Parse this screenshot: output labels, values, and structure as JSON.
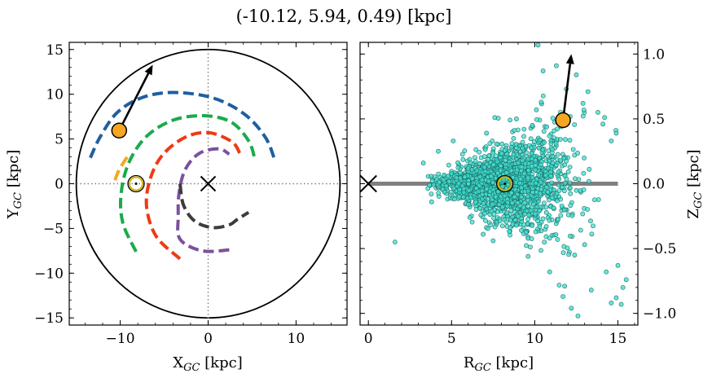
{
  "figure": {
    "title": "(-10.12, 5.94, 0.49) [kpc]"
  },
  "chart_data": [
    {
      "type": "scatter",
      "panel": "left",
      "xlabel_main": "X",
      "xlabel_sub": "GC",
      "xlabel_unit": " [kpc]",
      "ylabel_main": "Y",
      "ylabel_sub": "GC",
      "ylabel_unit": " [kpc]",
      "xlim": [
        -15.8,
        15.8
      ],
      "ylim": [
        -15.8,
        15.8
      ],
      "xticks": [
        -10,
        0,
        10
      ],
      "yticks": [
        15,
        10,
        5,
        0,
        -5,
        -10,
        -15
      ],
      "xtick_labels": [
        "−10",
        "0",
        "10"
      ],
      "ytick_labels": [
        "15",
        "10",
        "5",
        "0",
        "−5",
        "−10",
        "−15"
      ],
      "grid": false,
      "boundary_circle_radius": 15,
      "reference_lines": {
        "x": 0,
        "y": 0,
        "style": "dotted"
      },
      "galactic_center": {
        "x": 0,
        "y": 0,
        "marker": "x"
      },
      "sun": {
        "x": -8.2,
        "y": 0,
        "marker": "sun-symbol",
        "color": "#d4b200"
      },
      "target": {
        "x": -10.12,
        "y": 5.94,
        "color": "#f5a623"
      },
      "velocity_arrow": {
        "from": [
          -10.12,
          5.94
        ],
        "to": [
          -6.3,
          13.3
        ]
      },
      "spiral_arms": [
        {
          "color": "#1f5fa0",
          "points": [
            [
              -13.4,
              2.9
            ],
            [
              -12.3,
              5.2
            ],
            [
              -10.4,
              7.9
            ],
            [
              -7.6,
              9.6
            ],
            [
              -4.0,
              10.2
            ],
            [
              0.5,
              9.6
            ],
            [
              4.1,
              7.8
            ],
            [
              6.5,
              5.2
            ],
            [
              7.6,
              2.6
            ]
          ]
        },
        {
          "color": "#1aab4b",
          "points": [
            [
              -8.2,
              -7.6
            ],
            [
              -9.7,
              -4.4
            ],
            [
              -9.9,
              -1.1
            ],
            [
              -9.0,
              2.4
            ],
            [
              -7.0,
              5.3
            ],
            [
              -4.0,
              7.1
            ],
            [
              -0.5,
              7.6
            ],
            [
              2.6,
              6.9
            ],
            [
              4.6,
              4.8
            ],
            [
              5.3,
              2.8
            ]
          ]
        },
        {
          "color": "#ee3a14",
          "points": [
            [
              -3.2,
              -8.4
            ],
            [
              -5.9,
              -5.9
            ],
            [
              -7.0,
              -2.6
            ],
            [
              -6.6,
              0.5
            ],
            [
              -5.2,
              3.2
            ],
            [
              -2.6,
              5.2
            ],
            [
              0.1,
              5.7
            ],
            [
              2.7,
              4.7
            ],
            [
              3.6,
              3.4
            ]
          ]
        },
        {
          "color": "#7b519c",
          "points": [
            [
              2.4,
              -7.4
            ],
            [
              -0.7,
              -7.5
            ],
            [
              -3.2,
              -6.2
            ],
            [
              -3.4,
              -3.6
            ],
            [
              -3.3,
              -1.0
            ],
            [
              -2.6,
              1.6
            ],
            [
              -1.0,
              3.4
            ],
            [
              1.2,
              3.9
            ],
            [
              2.4,
              3.3
            ]
          ]
        },
        {
          "color": "#3c3c3c",
          "points": [
            [
              -3.2,
              0.0
            ],
            [
              -2.8,
              -2.4
            ],
            [
              -1.5,
              -4.2
            ],
            [
              0.5,
              -4.9
            ],
            [
              2.4,
              -4.6
            ],
            [
              3.3,
              -4.0
            ],
            [
              4.6,
              -3.2
            ]
          ]
        },
        {
          "color": "#f5a623",
          "points": [
            [
              -10.6,
              0.4
            ],
            [
              -10.1,
              1.6
            ],
            [
              -9.2,
              3.0
            ]
          ]
        }
      ]
    },
    {
      "type": "scatter",
      "panel": "right",
      "xlabel_main": "R",
      "xlabel_sub": "GC",
      "xlabel_unit": " [kpc]",
      "ylabel_main": "Z",
      "ylabel_sub": "GC",
      "ylabel_unit": " [kpc]",
      "xlim": [
        -0.5,
        16.2
      ],
      "ylim": [
        -1.09,
        1.09
      ],
      "xticks": [
        0,
        5,
        10,
        15
      ],
      "yticks": [
        1.0,
        0.5,
        0.0,
        -0.5,
        -1.0
      ],
      "xtick_labels": [
        "0",
        "5",
        "10",
        "15"
      ],
      "ytick_labels": [
        "1.0",
        "0.5",
        "0.0",
        "−0.5",
        "−1.0"
      ],
      "y_axis_side": "right",
      "grid": false,
      "galactic_plane": {
        "from_x": 0,
        "to_x": 15,
        "y": 0,
        "color": "#808080"
      },
      "galactic_center": {
        "x": 0,
        "y": 0,
        "marker": "x"
      },
      "sun": {
        "x": 8.2,
        "y": 0,
        "marker": "sun-symbol",
        "color": "#d4b200"
      },
      "target": {
        "x": 11.7,
        "y": 0.49,
        "color": "#f5a623"
      },
      "velocity_arrow": {
        "from": [
          11.7,
          0.49
        ],
        "to": [
          12.2,
          1.0
        ]
      },
      "star_color": "#40e0d0",
      "stars_count": 1800,
      "stars_outliers": [
        [
          10.2,
          1.07
        ],
        [
          10.5,
          0.87
        ],
        [
          11.3,
          0.91
        ],
        [
          12.5,
          0.84
        ],
        [
          14.2,
          0.51
        ],
        [
          14.1,
          0.46
        ],
        [
          13.8,
          0.55
        ],
        [
          14.6,
          0.33
        ],
        [
          12.9,
          0.62
        ],
        [
          11.9,
          0.73
        ],
        [
          13.2,
          0.71
        ],
        [
          14.9,
          0.39
        ],
        [
          1.6,
          -0.45
        ],
        [
          3.3,
          0.16
        ],
        [
          4.2,
          0.25
        ],
        [
          5.1,
          0.33
        ],
        [
          3.8,
          -0.14
        ],
        [
          7.1,
          0.39
        ],
        [
          7.6,
          0.51
        ],
        [
          8.9,
          0.5
        ],
        [
          10.1,
          0.57
        ],
        [
          6.9,
          -0.39
        ],
        [
          7.5,
          -0.44
        ],
        [
          9.6,
          -0.56
        ],
        [
          10.9,
          -0.68
        ],
        [
          11.8,
          -0.79
        ],
        [
          12.4,
          -0.55
        ],
        [
          14.3,
          -0.68
        ],
        [
          14.9,
          -0.88
        ],
        [
          14.6,
          -0.92
        ],
        [
          15.2,
          -0.93
        ],
        [
          13.4,
          -0.82
        ],
        [
          12.6,
          -1.02
        ],
        [
          11.7,
          -0.87
        ],
        [
          10.9,
          -0.42
        ],
        [
          15.5,
          -0.74
        ],
        [
          15.3,
          -0.8
        ],
        [
          13.0,
          -0.47
        ],
        [
          6.1,
          -0.26
        ],
        [
          9.2,
          -0.36
        ],
        [
          12.2,
          -0.96
        ],
        [
          15.0,
          -0.63
        ]
      ]
    }
  ]
}
